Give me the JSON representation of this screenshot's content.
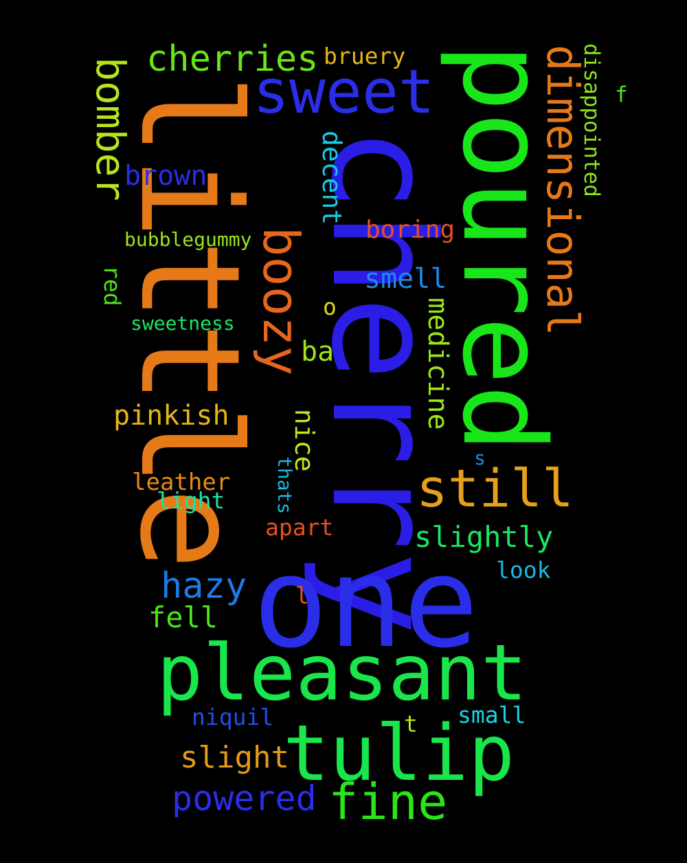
{
  "word_cloud": {
    "words": [
      {
        "id": "cherry",
        "text": "cherry",
        "color": "#2a1ee6"
      },
      {
        "id": "little",
        "text": "little",
        "color": "#e67a19"
      },
      {
        "id": "one",
        "text": "one",
        "color": "#2a2ee8"
      },
      {
        "id": "poured",
        "text": "poured",
        "color": "#19e619"
      },
      {
        "id": "pleasant",
        "text": "pleasant",
        "color": "#19e64a"
      },
      {
        "id": "tulip",
        "text": "tulip",
        "color": "#19e64a"
      },
      {
        "id": "sweet",
        "text": "sweet",
        "color": "#2a2ee8"
      },
      {
        "id": "dimensional",
        "text": "dimensional",
        "color": "#e67a19"
      },
      {
        "id": "boozy",
        "text": "boozy",
        "color": "#e6661e"
      },
      {
        "id": "still",
        "text": "still",
        "color": "#e6a019"
      },
      {
        "id": "fine",
        "text": "fine",
        "color": "#2ae619"
      },
      {
        "id": "bomber",
        "text": "bomber",
        "color": "#b6e619"
      },
      {
        "id": "cherries",
        "text": "cherries",
        "color": "#66e619"
      },
      {
        "id": "powered",
        "text": "powered",
        "color": "#2a2ee8"
      },
      {
        "id": "hazy",
        "text": "hazy",
        "color": "#1e7ae6"
      },
      {
        "id": "slightly",
        "text": "slightly",
        "color": "#19e666"
      },
      {
        "id": "slight",
        "text": "slight",
        "color": "#e69a19"
      },
      {
        "id": "medicine",
        "text": "medicine",
        "color": "#9ae619"
      },
      {
        "id": "brown",
        "text": "brown",
        "color": "#2a2ee8"
      },
      {
        "id": "fell",
        "text": "fell",
        "color": "#4ae619"
      },
      {
        "id": "pinkish",
        "text": "pinkish",
        "color": "#e6b619"
      },
      {
        "id": "smell",
        "text": "smell",
        "color": "#1e8ae6"
      },
      {
        "id": "decent",
        "text": "decent",
        "color": "#19cae6"
      },
      {
        "id": "boring",
        "text": "boring",
        "color": "#e6521e"
      },
      {
        "id": "nice",
        "text": "nice",
        "color": "#c6e619"
      },
      {
        "id": "disappointed",
        "text": "disappointed",
        "color": "#8ae619"
      },
      {
        "id": "bruery",
        "text": "bruery",
        "color": "#e6b619"
      },
      {
        "id": "leather",
        "text": "leather",
        "color": "#e68a19"
      },
      {
        "id": "ba",
        "text": "ba",
        "color": "#9ae619"
      },
      {
        "id": "red",
        "text": "red",
        "color": "#4ae619"
      },
      {
        "id": "look",
        "text": "look",
        "color": "#19bae6"
      },
      {
        "id": "small",
        "text": "small",
        "color": "#19d6e6"
      },
      {
        "id": "niquil",
        "text": "niquil",
        "color": "#1e52e6"
      },
      {
        "id": "apart",
        "text": "apart",
        "color": "#e6521e"
      },
      {
        "id": "light",
        "text": "light",
        "color": "#19e6a0"
      },
      {
        "id": "bubblegummy",
        "text": "bubblegummy",
        "color": "#9ae619"
      },
      {
        "id": "sweetness",
        "text": "sweetness",
        "color": "#19e666"
      },
      {
        "id": "thats",
        "text": "thats",
        "color": "#19bae6"
      },
      {
        "id": "t",
        "text": "t",
        "color": "#b6e619"
      },
      {
        "id": "o",
        "text": "o",
        "color": "#e6d619"
      },
      {
        "id": "l",
        "text": "l",
        "color": "#e6521e"
      },
      {
        "id": "s",
        "text": "s",
        "color": "#1e8ae6"
      },
      {
        "id": "f",
        "text": "f",
        "color": "#52e619"
      }
    ]
  }
}
